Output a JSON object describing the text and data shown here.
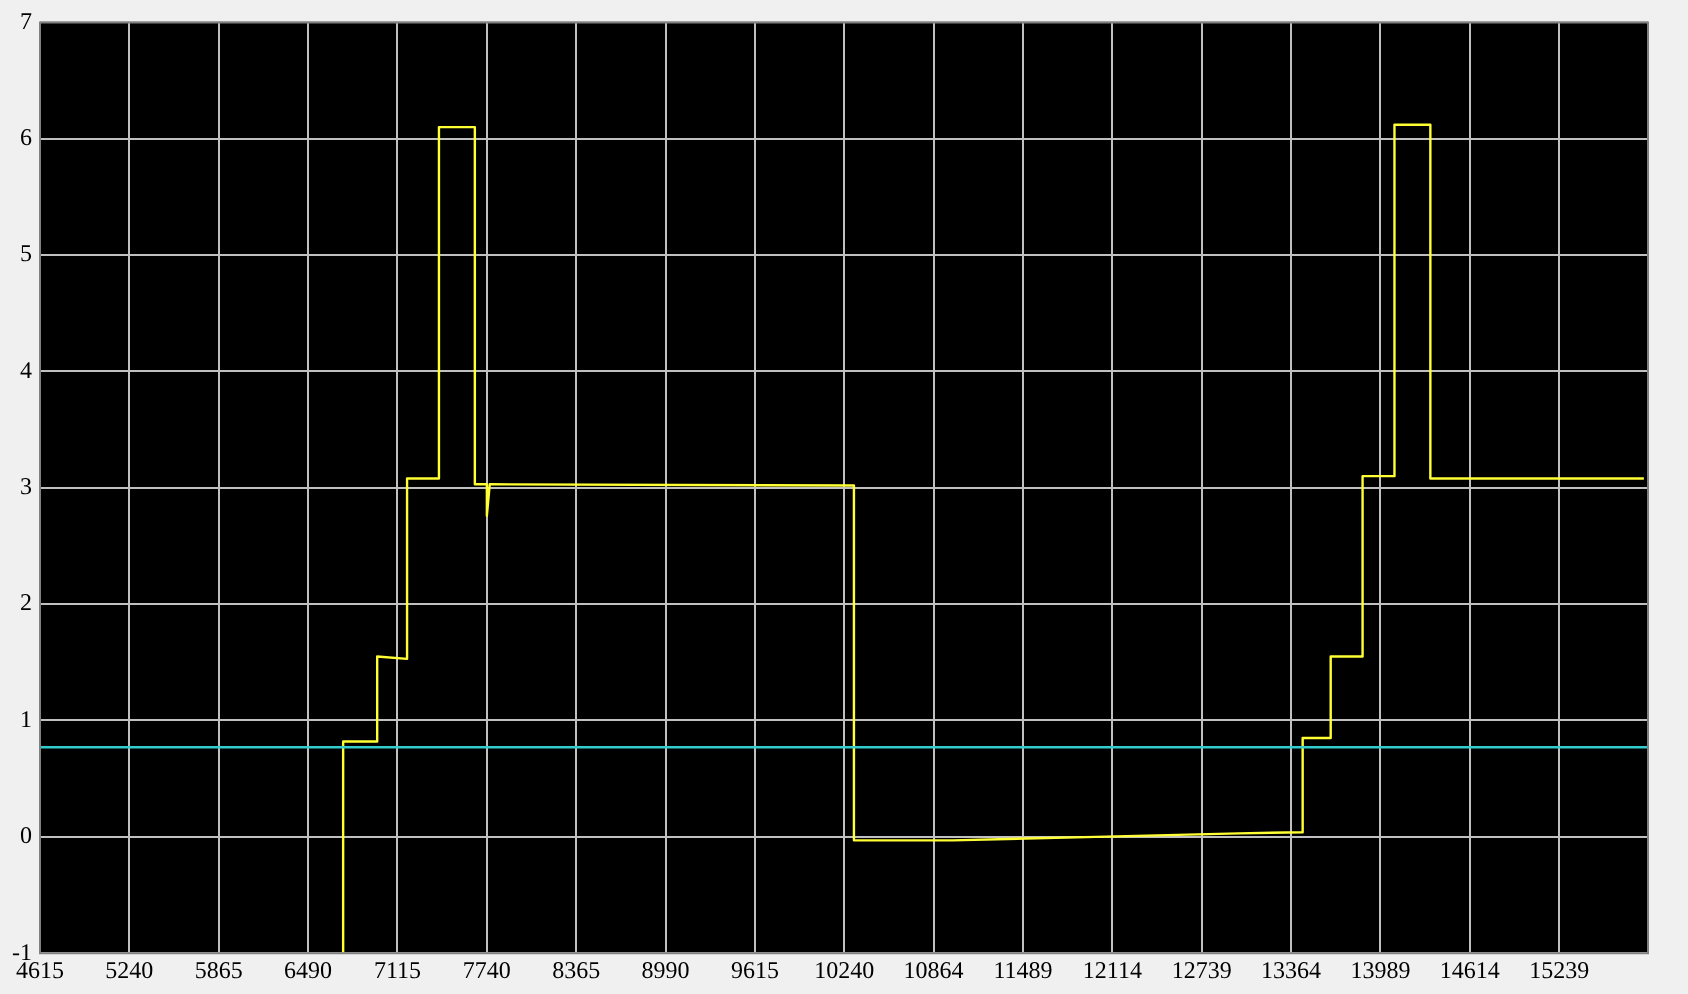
{
  "chart_data": {
    "type": "line",
    "marker": "none",
    "grid": true,
    "xlim": [
      4615,
      15860
    ],
    "ylim": [
      -1,
      7
    ],
    "xticks": [
      4615,
      5240,
      5865,
      6490,
      7115,
      7740,
      8365,
      8990,
      9615,
      10240,
      10864,
      11489,
      12114,
      12739,
      13364,
      13989,
      14614,
      15239
    ],
    "yticks": [
      -1,
      0,
      1,
      2,
      3,
      4,
      5,
      6,
      7
    ],
    "series": [
      {
        "color": "#33cccc",
        "x": [
          4615,
          6000,
          8000,
          10000,
          12000,
          14000,
          15860
        ],
        "values": [
          0.77,
          0.77,
          0.77,
          0.77,
          0.77,
          0.77,
          0.77
        ]
      },
      {
        "color": "#ffff33",
        "x": [
          6735,
          6735,
          6973,
          6973,
          7182,
          7182,
          7405,
          7405,
          7656,
          7656,
          7740,
          7740,
          7760,
          10307,
          10307,
          11000,
          12000,
          13000,
          13445,
          13445,
          13641,
          13641,
          13864,
          13864,
          14087,
          14087,
          14338,
          14338,
          15831
        ],
        "values": [
          -1,
          0.82,
          0.82,
          1.55,
          1.53,
          3.08,
          3.08,
          6.1,
          6.1,
          3.03,
          3.03,
          2.76,
          3.03,
          3.02,
          -0.03,
          -0.03,
          0,
          0.03,
          0.04,
          0.85,
          0.85,
          1.55,
          1.55,
          3.1,
          3.1,
          6.12,
          6.12,
          3.08,
          3.08
        ]
      }
    ]
  }
}
